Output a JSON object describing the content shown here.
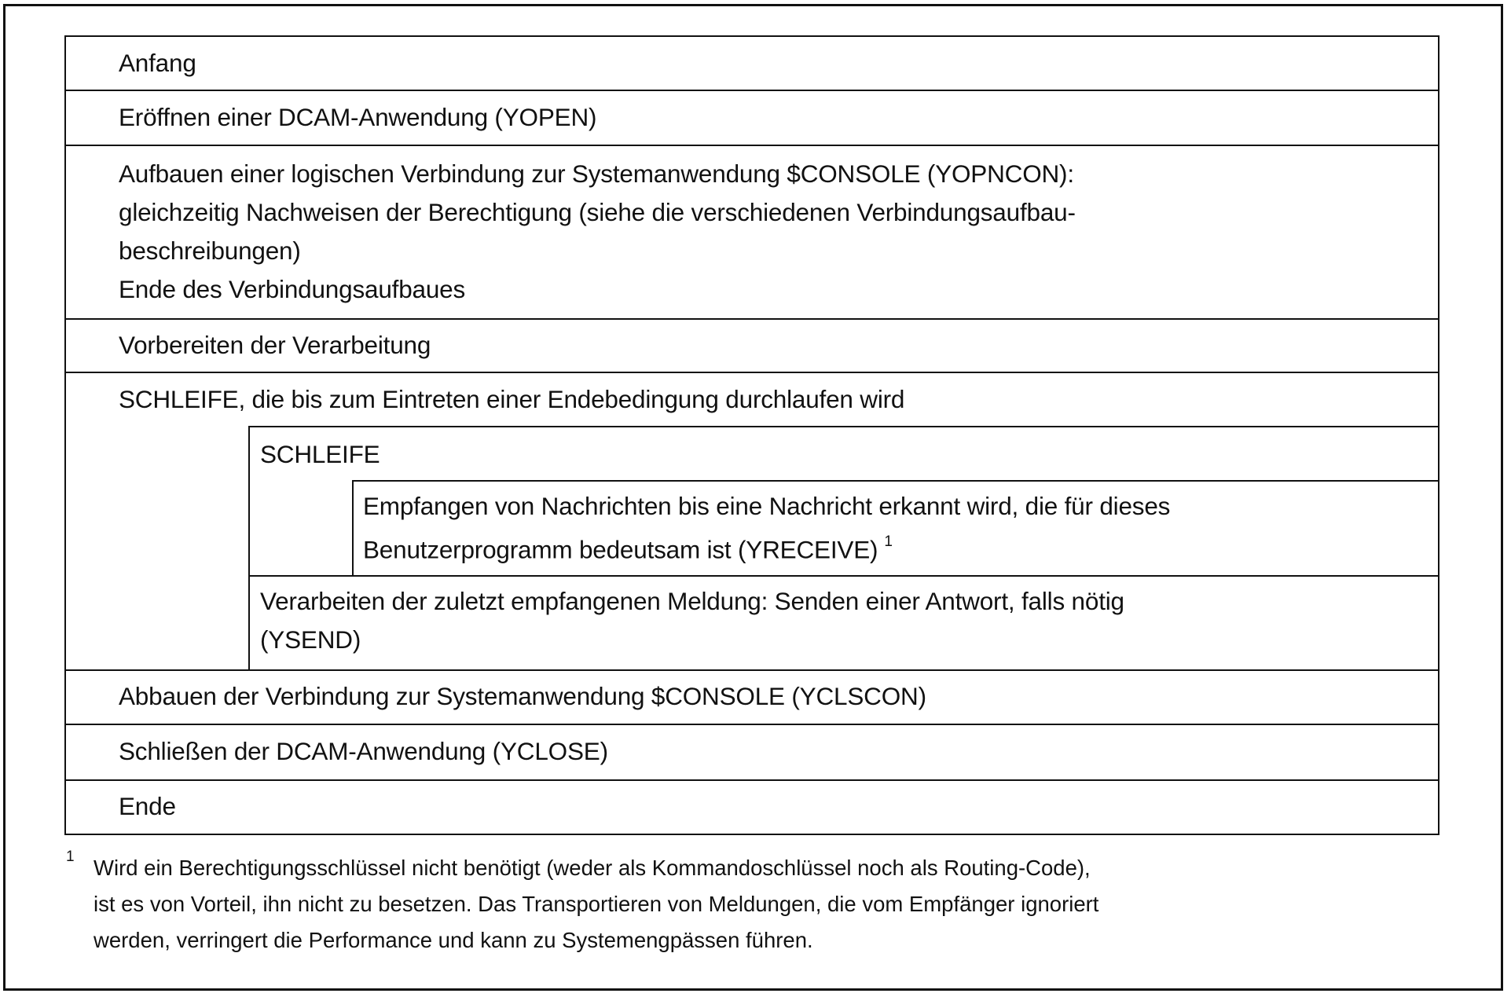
{
  "rows": {
    "anfang": "Anfang",
    "yopen": "Eröffnen einer DCAM-Anwendung (YOPEN)",
    "yopncon": [
      "Aufbauen einer logischen Verbindung zur Systemanwendung $CONSOLE (YOPNCON):",
      "gleichzeitig Nachweisen der Berechtigung (siehe die verschiedenen Verbindungsaufbau-",
      "beschreibungen)",
      "Ende des Verbindungsaufbaues"
    ],
    "vorbereiten": "Vorbereiten der Verarbeitung",
    "outer_loop": "SCHLEIFE, die bis zum Eintreten einer Endebedingung durchlaufen wird",
    "inner_loop": "SCHLEIFE",
    "yreceive": [
      "Empfangen von Nachrichten bis eine Nachricht erkannt wird, die für dieses",
      "Benutzerprogramm bedeutsam ist (YRECEIVE)"
    ],
    "yreceive_footnote_mark": "1",
    "ysend": [
      "Verarbeiten der zuletzt empfangenen Meldung: Senden einer Antwort, falls nötig",
      "(YSEND)"
    ],
    "yclscon": "Abbauen der Verbindung zur Systemanwendung $CONSOLE (YCLSCON)",
    "yclose": "Schließen der DCAM-Anwendung (YCLOSE)",
    "ende": "Ende"
  },
  "footnote": {
    "mark": "1",
    "lines": [
      "Wird ein Berechtigungsschlüssel nicht benötigt (weder als Kommandoschlüssel noch als Routing-Code),",
      "ist es von Vorteil, ihn nicht zu besetzen. Das Transportieren von Meldungen, die vom Empfänger ignoriert",
      "werden, verringert die Performance und kann zu Systemengpässen führen."
    ]
  }
}
